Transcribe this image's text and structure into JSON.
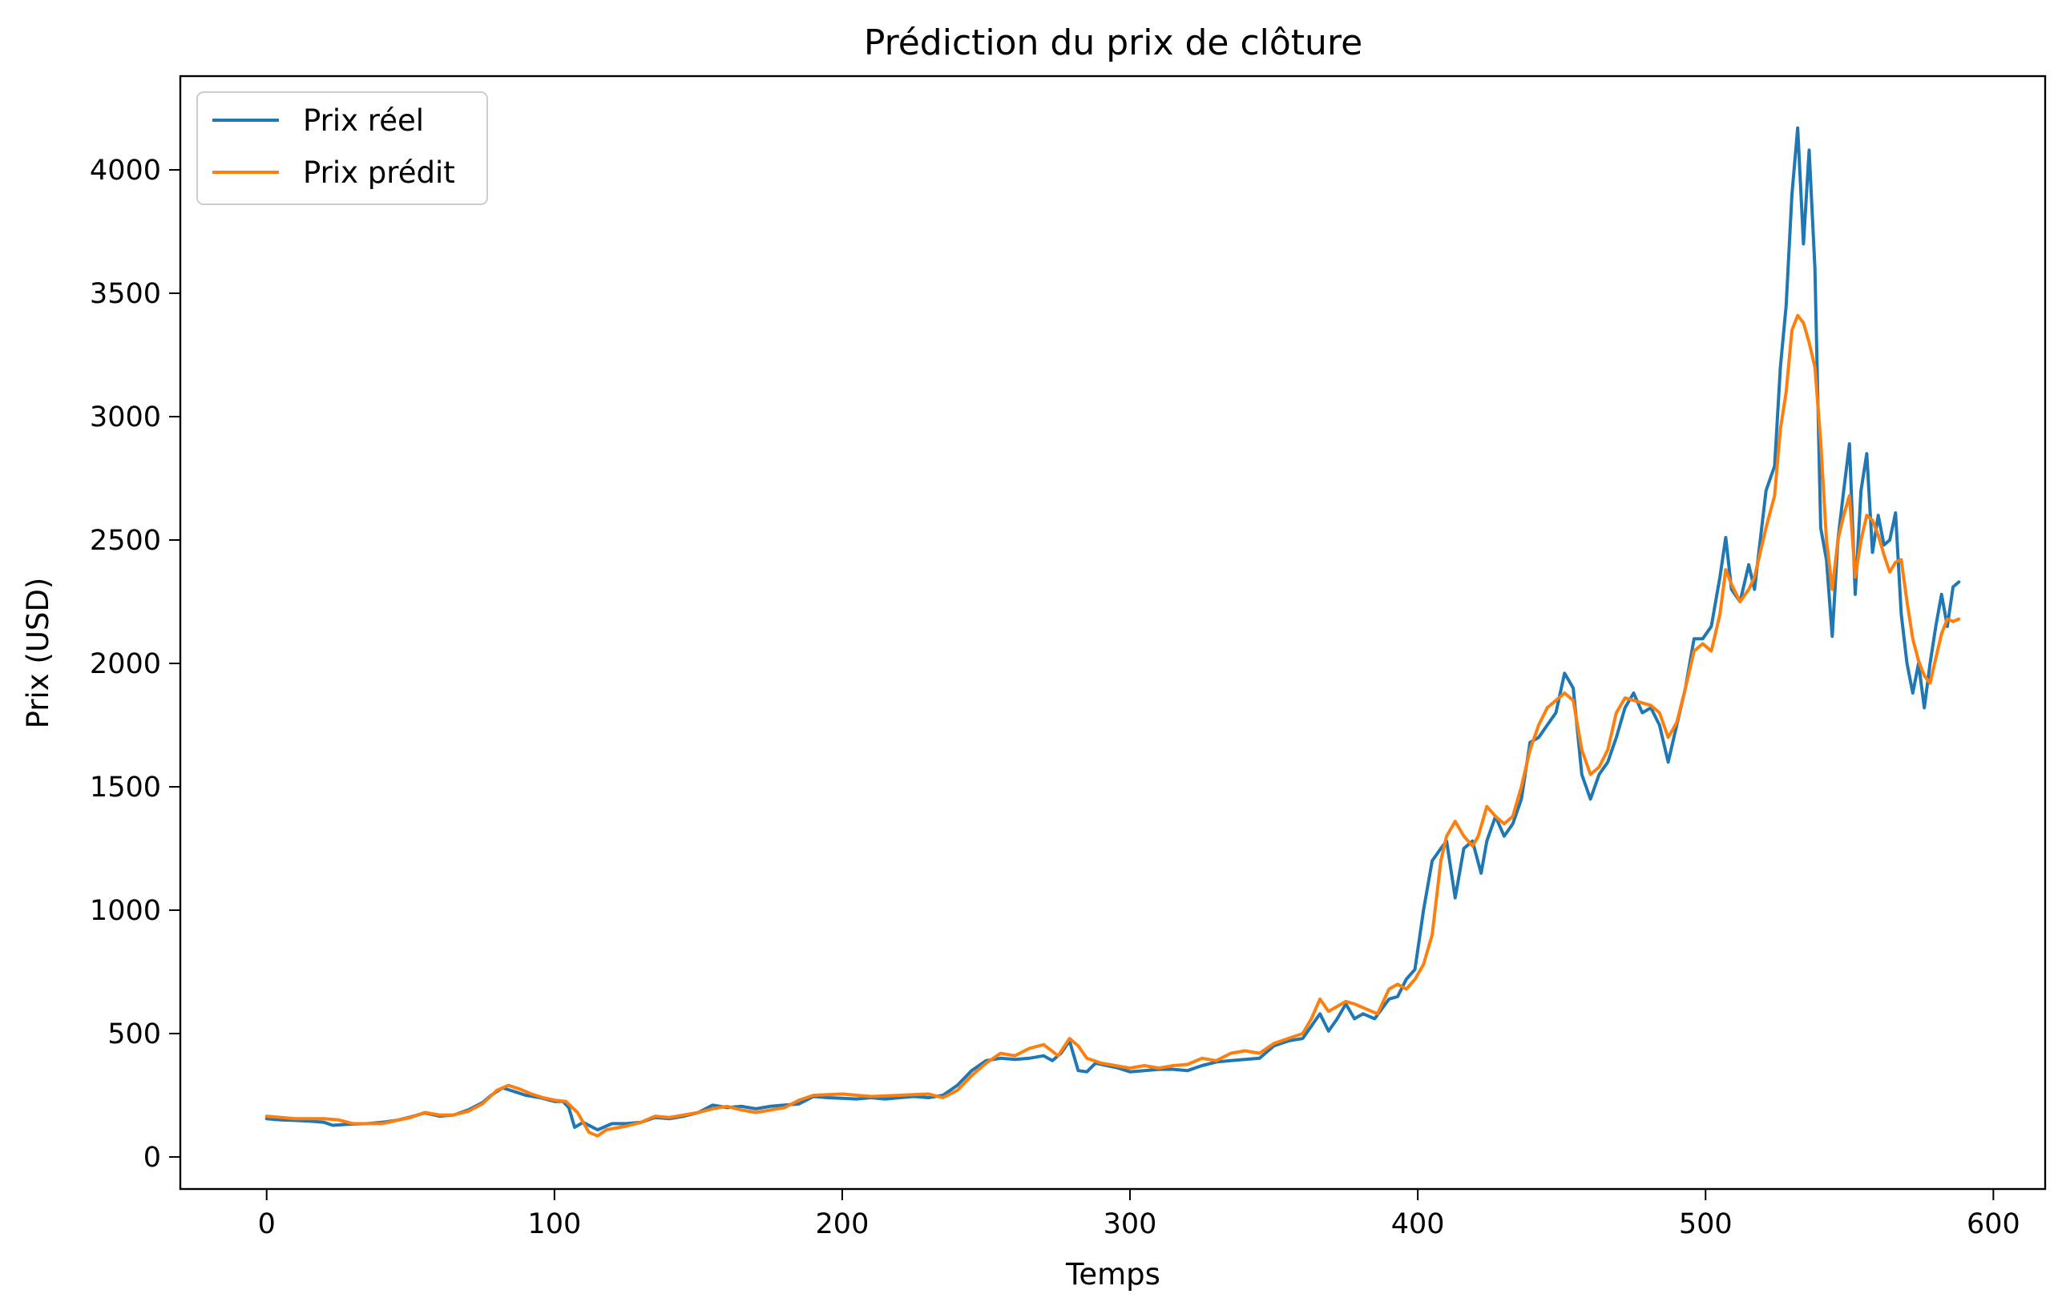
{
  "chart_data": {
    "type": "line",
    "title": "Prédiction du prix de clôture",
    "xlabel": "Temps",
    "ylabel": "Prix (USD)",
    "xlim": [
      -30,
      618
    ],
    "ylim": [
      -130,
      4380
    ],
    "xticks": [
      0,
      100,
      200,
      300,
      400,
      500,
      600
    ],
    "yticks": [
      0,
      500,
      1000,
      1500,
      2000,
      2500,
      3000,
      3500,
      4000
    ],
    "grid": false,
    "legend_position": "top-left",
    "series": [
      {
        "name": "Prix réel",
        "color": "#1f77b4",
        "points": [
          [
            0,
            155
          ],
          [
            5,
            150
          ],
          [
            10,
            148
          ],
          [
            15,
            145
          ],
          [
            20,
            140
          ],
          [
            23,
            128
          ],
          [
            28,
            132
          ],
          [
            35,
            135
          ],
          [
            40,
            140
          ],
          [
            45,
            148
          ],
          [
            50,
            162
          ],
          [
            55,
            178
          ],
          [
            60,
            165
          ],
          [
            65,
            170
          ],
          [
            70,
            190
          ],
          [
            75,
            220
          ],
          [
            78,
            250
          ],
          [
            82,
            280
          ],
          [
            86,
            265
          ],
          [
            90,
            250
          ],
          [
            95,
            240
          ],
          [
            100,
            225
          ],
          [
            103,
            225
          ],
          [
            105,
            200
          ],
          [
            107,
            120
          ],
          [
            110,
            140
          ],
          [
            115,
            110
          ],
          [
            120,
            135
          ],
          [
            125,
            135
          ],
          [
            130,
            140
          ],
          [
            135,
            160
          ],
          [
            140,
            155
          ],
          [
            145,
            165
          ],
          [
            150,
            180
          ],
          [
            155,
            210
          ],
          [
            160,
            200
          ],
          [
            165,
            205
          ],
          [
            170,
            195
          ],
          [
            175,
            205
          ],
          [
            180,
            210
          ],
          [
            185,
            215
          ],
          [
            190,
            245
          ],
          [
            195,
            240
          ],
          [
            200,
            238
          ],
          [
            205,
            235
          ],
          [
            210,
            240
          ],
          [
            215,
            235
          ],
          [
            220,
            240
          ],
          [
            225,
            245
          ],
          [
            230,
            240
          ],
          [
            235,
            250
          ],
          [
            240,
            290
          ],
          [
            245,
            350
          ],
          [
            250,
            390
          ],
          [
            255,
            400
          ],
          [
            260,
            395
          ],
          [
            265,
            400
          ],
          [
            270,
            410
          ],
          [
            273,
            390
          ],
          [
            276,
            420
          ],
          [
            279,
            470
          ],
          [
            282,
            350
          ],
          [
            285,
            345
          ],
          [
            288,
            380
          ],
          [
            292,
            370
          ],
          [
            296,
            360
          ],
          [
            300,
            345
          ],
          [
            305,
            350
          ],
          [
            310,
            355
          ],
          [
            315,
            355
          ],
          [
            320,
            350
          ],
          [
            325,
            370
          ],
          [
            330,
            385
          ],
          [
            335,
            390
          ],
          [
            340,
            395
          ],
          [
            345,
            400
          ],
          [
            350,
            450
          ],
          [
            355,
            470
          ],
          [
            360,
            480
          ],
          [
            363,
            530
          ],
          [
            366,
            580
          ],
          [
            369,
            510
          ],
          [
            372,
            560
          ],
          [
            375,
            620
          ],
          [
            378,
            560
          ],
          [
            381,
            580
          ],
          [
            385,
            560
          ],
          [
            390,
            640
          ],
          [
            393,
            650
          ],
          [
            396,
            720
          ],
          [
            399,
            760
          ],
          [
            402,
            1000
          ],
          [
            405,
            1200
          ],
          [
            408,
            1250
          ],
          [
            410,
            1280
          ],
          [
            413,
            1050
          ],
          [
            416,
            1250
          ],
          [
            419,
            1280
          ],
          [
            422,
            1150
          ],
          [
            424,
            1280
          ],
          [
            427,
            1380
          ],
          [
            430,
            1300
          ],
          [
            433,
            1350
          ],
          [
            436,
            1450
          ],
          [
            439,
            1680
          ],
          [
            442,
            1700
          ],
          [
            445,
            1750
          ],
          [
            448,
            1800
          ],
          [
            451,
            1960
          ],
          [
            454,
            1900
          ],
          [
            457,
            1550
          ],
          [
            460,
            1450
          ],
          [
            463,
            1550
          ],
          [
            466,
            1600
          ],
          [
            469,
            1700
          ],
          [
            472,
            1820
          ],
          [
            475,
            1880
          ],
          [
            478,
            1800
          ],
          [
            481,
            1820
          ],
          [
            484,
            1750
          ],
          [
            487,
            1600
          ],
          [
            490,
            1750
          ],
          [
            493,
            1900
          ],
          [
            496,
            2100
          ],
          [
            499,
            2100
          ],
          [
            502,
            2150
          ],
          [
            505,
            2350
          ],
          [
            507,
            2510
          ],
          [
            509,
            2300
          ],
          [
            512,
            2250
          ],
          [
            515,
            2400
          ],
          [
            517,
            2300
          ],
          [
            519,
            2500
          ],
          [
            521,
            2700
          ],
          [
            524,
            2800
          ],
          [
            526,
            3200
          ],
          [
            528,
            3450
          ],
          [
            530,
            3900
          ],
          [
            532,
            4170
          ],
          [
            534,
            3700
          ],
          [
            536,
            4080
          ],
          [
            538,
            3600
          ],
          [
            540,
            2550
          ],
          [
            542,
            2420
          ],
          [
            544,
            2110
          ],
          [
            546,
            2500
          ],
          [
            548,
            2700
          ],
          [
            550,
            2890
          ],
          [
            552,
            2280
          ],
          [
            554,
            2700
          ],
          [
            556,
            2850
          ],
          [
            558,
            2450
          ],
          [
            560,
            2600
          ],
          [
            562,
            2480
          ],
          [
            564,
            2500
          ],
          [
            566,
            2610
          ],
          [
            568,
            2200
          ],
          [
            570,
            2000
          ],
          [
            572,
            1880
          ],
          [
            574,
            2000
          ],
          [
            576,
            1820
          ],
          [
            578,
            2000
          ],
          [
            580,
            2150
          ],
          [
            582,
            2280
          ],
          [
            584,
            2150
          ],
          [
            586,
            2310
          ],
          [
            588,
            2330
          ]
        ]
      },
      {
        "name": "Prix prédit",
        "color": "#ff7f0e",
        "points": [
          [
            0,
            165
          ],
          [
            10,
            155
          ],
          [
            20,
            155
          ],
          [
            25,
            150
          ],
          [
            30,
            135
          ],
          [
            40,
            135
          ],
          [
            50,
            160
          ],
          [
            55,
            180
          ],
          [
            60,
            170
          ],
          [
            65,
            170
          ],
          [
            70,
            185
          ],
          [
            75,
            215
          ],
          [
            80,
            270
          ],
          [
            84,
            290
          ],
          [
            88,
            275
          ],
          [
            92,
            255
          ],
          [
            96,
            240
          ],
          [
            100,
            230
          ],
          [
            104,
            225
          ],
          [
            108,
            180
          ],
          [
            112,
            100
          ],
          [
            115,
            85
          ],
          [
            118,
            110
          ],
          [
            125,
            125
          ],
          [
            130,
            140
          ],
          [
            135,
            165
          ],
          [
            140,
            160
          ],
          [
            145,
            170
          ],
          [
            150,
            180
          ],
          [
            155,
            195
          ],
          [
            160,
            205
          ],
          [
            165,
            190
          ],
          [
            170,
            180
          ],
          [
            175,
            190
          ],
          [
            180,
            200
          ],
          [
            185,
            230
          ],
          [
            190,
            250
          ],
          [
            200,
            255
          ],
          [
            210,
            245
          ],
          [
            220,
            250
          ],
          [
            230,
            255
          ],
          [
            235,
            240
          ],
          [
            240,
            270
          ],
          [
            245,
            330
          ],
          [
            250,
            380
          ],
          [
            255,
            420
          ],
          [
            260,
            410
          ],
          [
            265,
            440
          ],
          [
            270,
            455
          ],
          [
            275,
            410
          ],
          [
            279,
            480
          ],
          [
            282,
            450
          ],
          [
            285,
            400
          ],
          [
            290,
            380
          ],
          [
            295,
            370
          ],
          [
            300,
            360
          ],
          [
            305,
            370
          ],
          [
            310,
            360
          ],
          [
            315,
            370
          ],
          [
            320,
            375
          ],
          [
            325,
            400
          ],
          [
            330,
            390
          ],
          [
            335,
            420
          ],
          [
            340,
            430
          ],
          [
            345,
            420
          ],
          [
            350,
            460
          ],
          [
            355,
            480
          ],
          [
            360,
            500
          ],
          [
            363,
            560
          ],
          [
            366,
            640
          ],
          [
            369,
            590
          ],
          [
            372,
            610
          ],
          [
            375,
            630
          ],
          [
            378,
            620
          ],
          [
            382,
            600
          ],
          [
            386,
            580
          ],
          [
            390,
            680
          ],
          [
            393,
            700
          ],
          [
            396,
            680
          ],
          [
            399,
            720
          ],
          [
            402,
            780
          ],
          [
            405,
            900
          ],
          [
            408,
            1200
          ],
          [
            410,
            1300
          ],
          [
            413,
            1360
          ],
          [
            416,
            1300
          ],
          [
            419,
            1260
          ],
          [
            421,
            1300
          ],
          [
            424,
            1420
          ],
          [
            427,
            1380
          ],
          [
            430,
            1350
          ],
          [
            433,
            1380
          ],
          [
            436,
            1500
          ],
          [
            439,
            1650
          ],
          [
            442,
            1750
          ],
          [
            445,
            1820
          ],
          [
            448,
            1850
          ],
          [
            451,
            1880
          ],
          [
            454,
            1850
          ],
          [
            457,
            1650
          ],
          [
            460,
            1550
          ],
          [
            463,
            1580
          ],
          [
            466,
            1650
          ],
          [
            469,
            1800
          ],
          [
            472,
            1860
          ],
          [
            475,
            1850
          ],
          [
            478,
            1840
          ],
          [
            481,
            1830
          ],
          [
            484,
            1800
          ],
          [
            487,
            1700
          ],
          [
            490,
            1760
          ],
          [
            493,
            1900
          ],
          [
            496,
            2050
          ],
          [
            499,
            2080
          ],
          [
            502,
            2050
          ],
          [
            505,
            2200
          ],
          [
            507,
            2380
          ],
          [
            509,
            2320
          ],
          [
            512,
            2250
          ],
          [
            515,
            2300
          ],
          [
            517,
            2350
          ],
          [
            519,
            2450
          ],
          [
            521,
            2550
          ],
          [
            524,
            2680
          ],
          [
            526,
            2950
          ],
          [
            528,
            3100
          ],
          [
            530,
            3350
          ],
          [
            532,
            3410
          ],
          [
            534,
            3380
          ],
          [
            536,
            3300
          ],
          [
            538,
            3200
          ],
          [
            540,
            2900
          ],
          [
            542,
            2500
          ],
          [
            544,
            2300
          ],
          [
            546,
            2500
          ],
          [
            548,
            2600
          ],
          [
            550,
            2680
          ],
          [
            552,
            2350
          ],
          [
            554,
            2500
          ],
          [
            556,
            2600
          ],
          [
            558,
            2580
          ],
          [
            560,
            2520
          ],
          [
            562,
            2440
          ],
          [
            564,
            2370
          ],
          [
            566,
            2410
          ],
          [
            568,
            2420
          ],
          [
            570,
            2250
          ],
          [
            572,
            2100
          ],
          [
            574,
            2010
          ],
          [
            576,
            1950
          ],
          [
            578,
            1920
          ],
          [
            580,
            2020
          ],
          [
            582,
            2120
          ],
          [
            584,
            2180
          ],
          [
            586,
            2170
          ],
          [
            588,
            2180
          ]
        ]
      }
    ]
  }
}
